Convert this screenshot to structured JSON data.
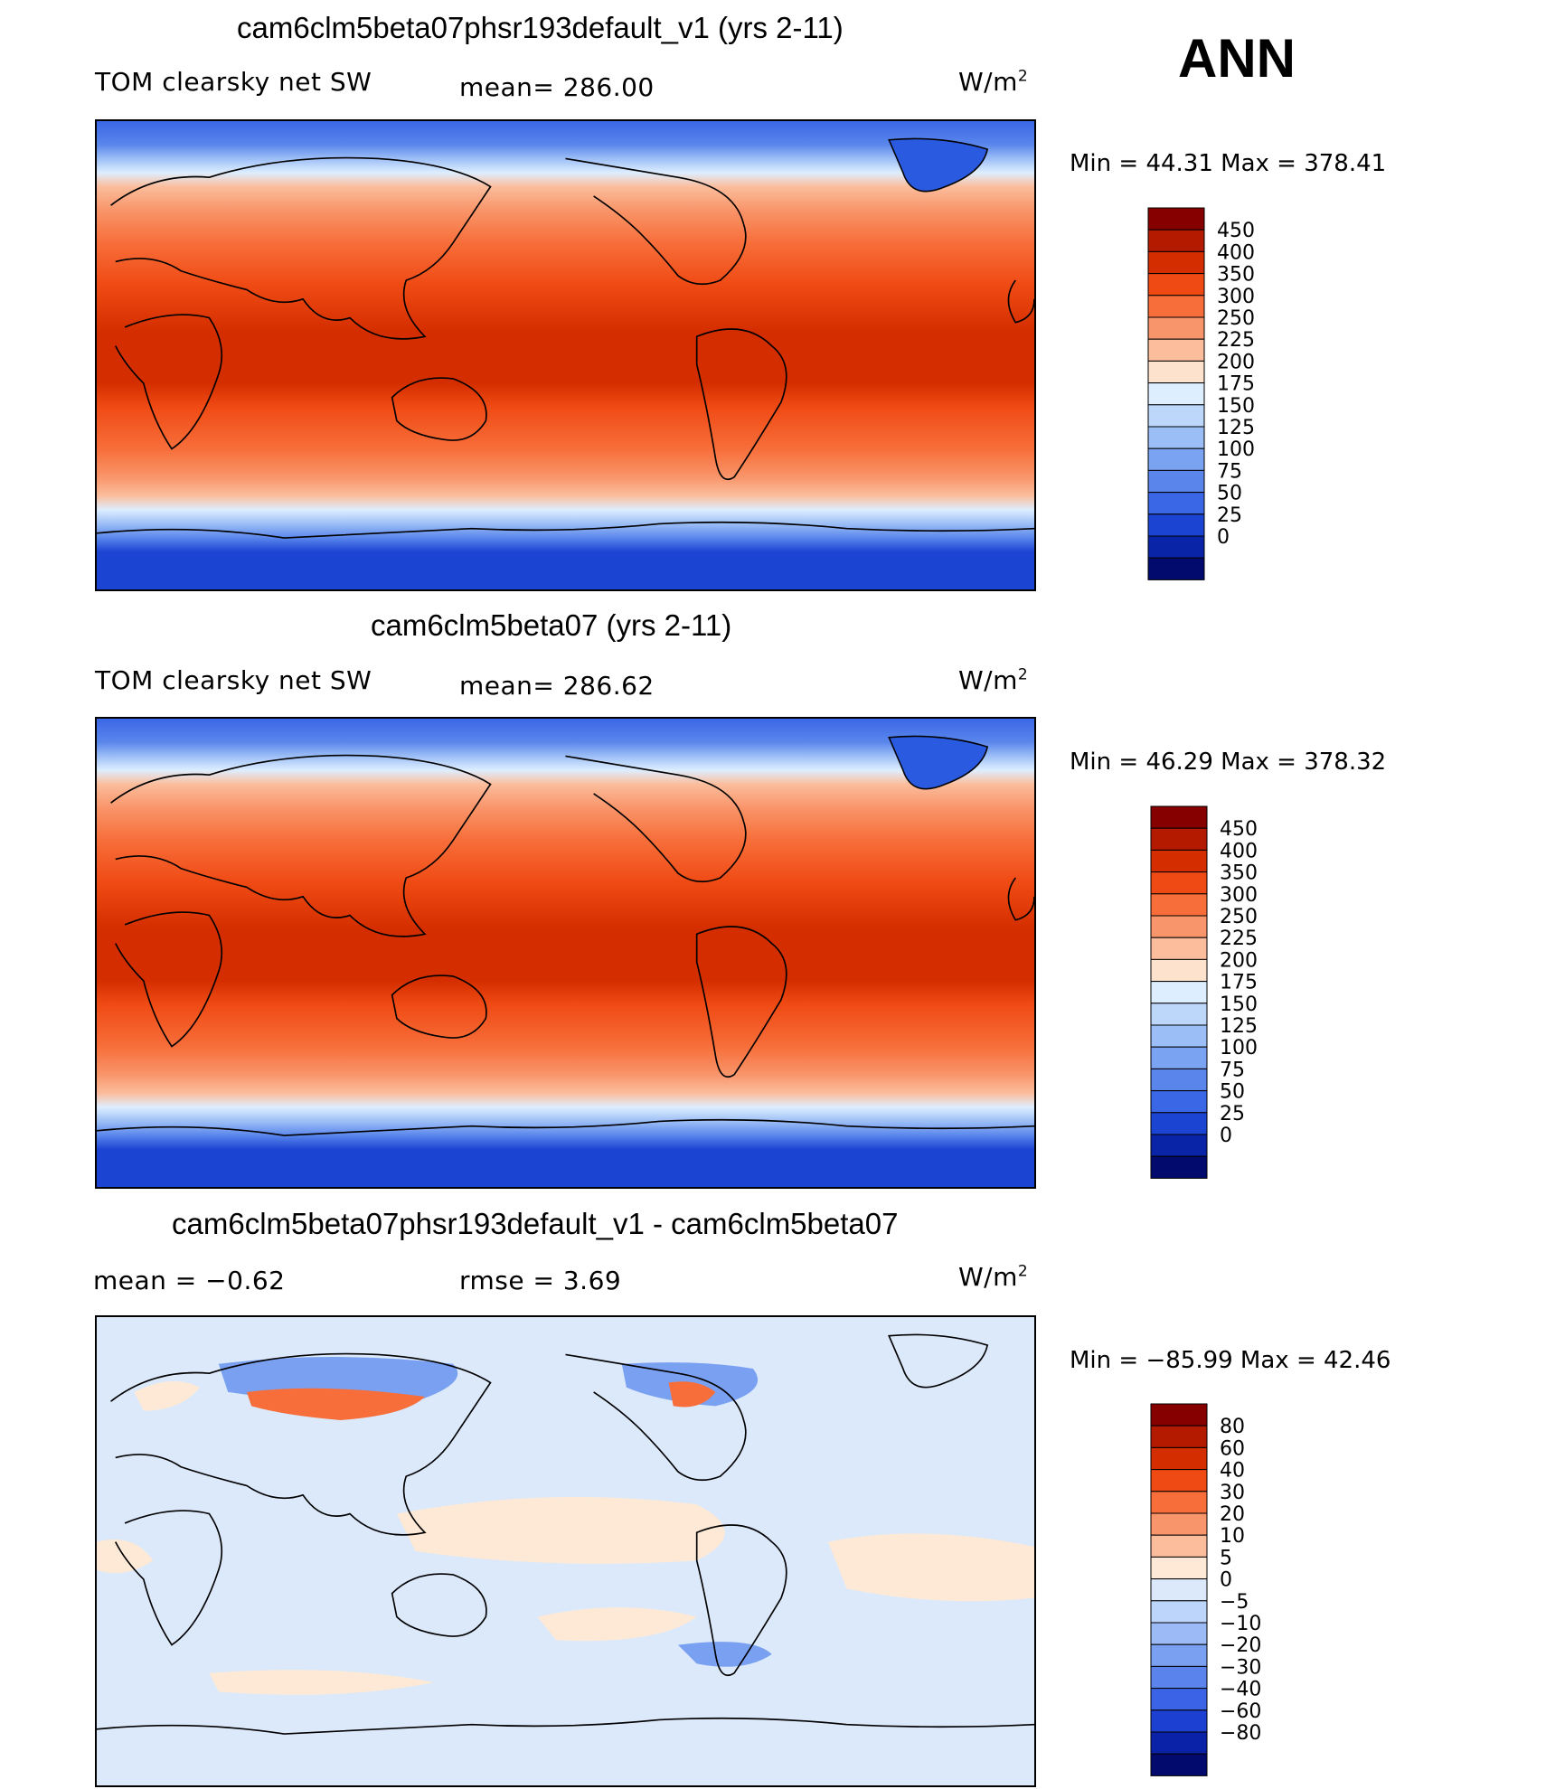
{
  "season": "ANN",
  "panels": [
    {
      "title": "cam6clm5beta07phsr193default_v1 (yrs 2-11)",
      "left_label": "TOM clearsky net SW",
      "mid_label": "mean=  286.00",
      "unit_base": "W/m",
      "unit_exp": "2",
      "minmax": "Min =   44.31  Max  =  378.41",
      "scale": "abs"
    },
    {
      "title": "cam6clm5beta07 (yrs 2-11)",
      "left_label": "TOM clearsky net SW",
      "mid_label": "mean=  286.62",
      "unit_base": "W/m",
      "unit_exp": "2",
      "minmax": "Min =   46.29  Max  =  378.32",
      "scale": "abs"
    },
    {
      "title": "cam6clm5beta07phsr193default_v1 - cam6clm5beta07",
      "left_label": "mean  =   −0.62",
      "mid_label": "rmse  =     3.69",
      "unit_base": "W/m",
      "unit_exp": "2",
      "minmax": "Min  = −85.99  Max  =   42.46",
      "scale": "diff"
    }
  ],
  "colorbars": {
    "abs": {
      "labels": [
        "450",
        "400",
        "350",
        "300",
        "250",
        "225",
        "200",
        "175",
        "150",
        "125",
        "100",
        "75",
        "50",
        "25",
        "0"
      ],
      "colors": [
        "#870000",
        "#b31a00",
        "#d42e00",
        "#f04a14",
        "#f76e3a",
        "#f9956a",
        "#fbbd9c",
        "#fde3cd",
        "#ddeeff",
        "#bdd7fb",
        "#9cbef6",
        "#7aa3f2",
        "#5a86ec",
        "#3a67e6",
        "#1c44d3",
        "#0a24a8",
        "#020a6e"
      ]
    },
    "diff": {
      "labels": [
        "80",
        "60",
        "40",
        "30",
        "20",
        "10",
        "5",
        "0",
        "−5",
        "−10",
        "−20",
        "−30",
        "−40",
        "−60",
        "−80"
      ],
      "colors": [
        "#870000",
        "#b31a00",
        "#d42e00",
        "#f04a14",
        "#f76e3a",
        "#f9956a",
        "#fbbd9c",
        "#fde9d6",
        "#dbe9fb",
        "#bdd4fb",
        "#9cbaf5",
        "#7aa0f1",
        "#5a84ec",
        "#3a63e5",
        "#1c40d2",
        "#0a22a8",
        "#020a6e"
      ]
    }
  }
}
